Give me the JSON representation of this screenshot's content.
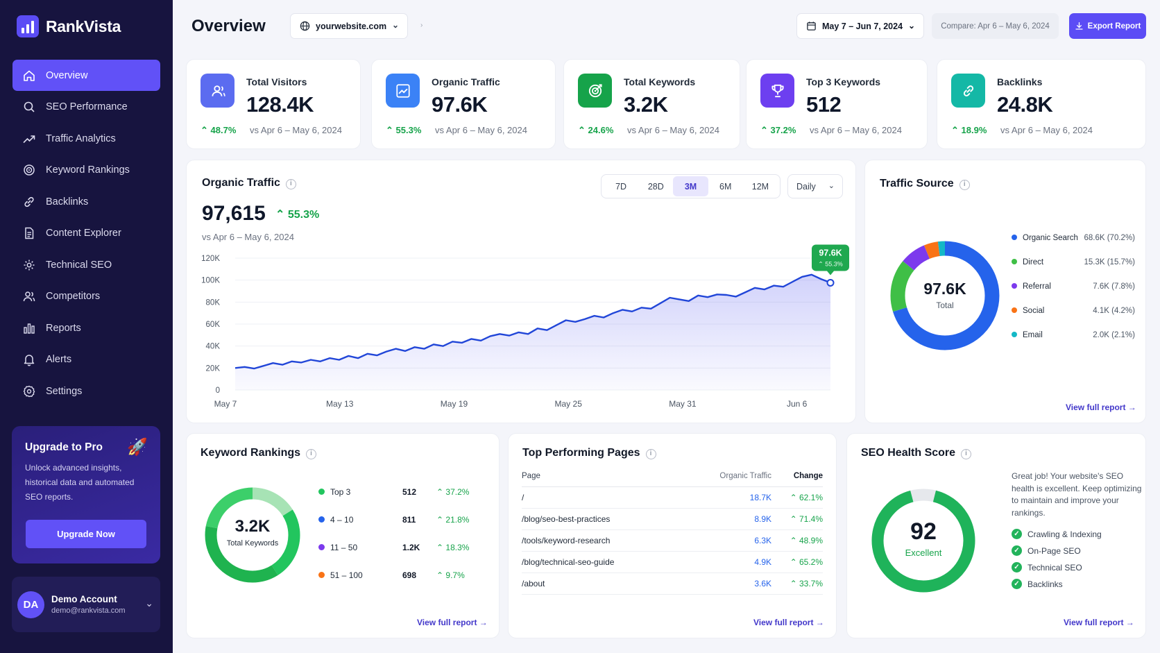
{
  "brand": {
    "name": "RankVista"
  },
  "sidebar": {
    "items": [
      {
        "label": "Overview",
        "icon": "home-icon",
        "active": true
      },
      {
        "label": "SEO Performance",
        "icon": "search-icon"
      },
      {
        "label": "Traffic Analytics",
        "icon": "trending-icon"
      },
      {
        "label": "Keyword Rankings",
        "icon": "target-icon"
      },
      {
        "label": "Backlinks",
        "icon": "link-icon"
      },
      {
        "label": "Content Explorer",
        "icon": "document-icon"
      },
      {
        "label": "Technical SEO",
        "icon": "gear-icon"
      },
      {
        "label": "Competitors",
        "icon": "users-icon"
      },
      {
        "label": "Reports",
        "icon": "bar-chart-icon"
      },
      {
        "label": "Alerts",
        "icon": "bell-icon"
      },
      {
        "label": "Settings",
        "icon": "settings-icon"
      }
    ],
    "upgrade": {
      "title": "Upgrade to Pro",
      "text": "Unlock advanced insights, historical data and automated SEO reports.",
      "button": "Upgrade Now"
    },
    "account": {
      "initials": "DA",
      "name": "Demo Account",
      "email": "demo@rankvista.com"
    }
  },
  "header": {
    "title": "Overview",
    "site": "yourwebsite.com",
    "date_range": "May 7 – Jun 7, 2024",
    "compare": "Compare: Apr 6 – May 6, 2024",
    "export": "Export Report"
  },
  "kpis": [
    {
      "label": "Total Visitors",
      "value": "128.4K",
      "change": "48.7%",
      "compare": "vs Apr 6 – May 6, 2024",
      "color": "#5b6cf0",
      "icon": "users-icon"
    },
    {
      "label": "Organic Traffic",
      "value": "97.6K",
      "change": "55.3%",
      "compare": "vs Apr 6 – May 6, 2024",
      "color": "#3b82f6",
      "icon": "trending-up-icon"
    },
    {
      "label": "Total Keywords",
      "value": "3.2K",
      "change": "24.6%",
      "compare": "vs Apr 6 – May 6, 2024",
      "color": "#16a34a",
      "icon": "target-icon"
    },
    {
      "label": "Top 3 Keywords",
      "value": "512",
      "change": "37.2%",
      "compare": "vs Apr 6 – May 6, 2024",
      "color": "#6d3ff0",
      "icon": "trophy-icon"
    },
    {
      "label": "Backlinks",
      "value": "24.8K",
      "change": "18.9%",
      "compare": "vs Apr 6 – May 6, 2024",
      "color": "#14b8a6",
      "icon": "link-icon"
    }
  ],
  "organic": {
    "title": "Organic Traffic",
    "ranges": [
      "7D",
      "28D",
      "3M",
      "6M",
      "12M"
    ],
    "active_range": "3M",
    "granularity": "Daily",
    "value": "97,615",
    "change": "55.3%",
    "compare": "vs Apr 6 – May 6, 2024",
    "tooltip": {
      "value": "97.6K",
      "change": "55.3%"
    }
  },
  "chart_data": {
    "type": "area",
    "x_ticks": [
      "May 7",
      "May 13",
      "May 19",
      "May 25",
      "May 31",
      "Jun 6"
    ],
    "y_ticks": [
      "0",
      "20K",
      "40K",
      "60K",
      "80K",
      "100K",
      "120K"
    ],
    "ylim": [
      0,
      120000
    ],
    "series": [
      {
        "values": [
          20000,
          21000,
          19500,
          22000,
          24500,
          23000,
          26000,
          25000,
          27500,
          26000,
          29000,
          27500,
          31000,
          29000,
          33000,
          31500,
          35000,
          37500,
          35500,
          39000,
          37500,
          41500,
          40000,
          44000,
          43000,
          46500,
          45000,
          49000,
          51000,
          49500,
          52500,
          51000,
          56000,
          54500,
          59000,
          63500,
          62000,
          64500,
          67500,
          66000,
          70000,
          73000,
          71500,
          75000,
          74000,
          79000,
          84000,
          82500,
          81000,
          86000,
          84500,
          87000,
          86500,
          85000,
          89000,
          93000,
          91500,
          95000,
          94000,
          98500,
          103000,
          105000,
          101000,
          97615
        ]
      }
    ]
  },
  "traffic_source": {
    "title": "Traffic Source",
    "center_value": "97.6K",
    "center_label": "Total",
    "items": [
      {
        "label": "Organic Search",
        "value": "68.6K (70.2%)",
        "pct": 70.2,
        "color": "#2563eb"
      },
      {
        "label": "Direct",
        "value": "15.3K (15.7%)",
        "pct": 15.7,
        "color": "#3fbf46"
      },
      {
        "label": "Referral",
        "value": "7.6K (7.8%)",
        "pct": 7.8,
        "color": "#7c3aed"
      },
      {
        "label": "Social",
        "value": "4.1K (4.2%)",
        "pct": 4.2,
        "color": "#f97316"
      },
      {
        "label": "Email",
        "value": "2.0K (2.1%)",
        "pct": 2.1,
        "color": "#14b8c6"
      }
    ],
    "link": "View full report"
  },
  "keyword_rankings": {
    "title": "Keyword Rankings",
    "center_value": "3.2K",
    "center_label": "Total Keywords",
    "rows": [
      {
        "label": "Top 3",
        "count": "512",
        "change": "37.2%",
        "color": "#22c55e"
      },
      {
        "label": "4 – 10",
        "count": "811",
        "change": "21.8%",
        "color": "#2563eb"
      },
      {
        "label": "11 – 50",
        "count": "1.2K",
        "change": "18.3%",
        "color": "#7c3aed"
      },
      {
        "label": "51 – 100",
        "count": "698",
        "change": "9.7%",
        "color": "#f97316"
      }
    ],
    "link": "View full report"
  },
  "top_pages": {
    "title": "Top Performing Pages",
    "headers": [
      "Page",
      "Organic Traffic",
      "Change"
    ],
    "rows": [
      {
        "page": "/",
        "traffic": "18.7K",
        "change": "62.1%"
      },
      {
        "page": "/blog/seo-best-practices",
        "traffic": "8.9K",
        "change": "71.4%"
      },
      {
        "page": "/tools/keyword-research",
        "traffic": "6.3K",
        "change": "48.9%"
      },
      {
        "page": "/blog/technical-seo-guide",
        "traffic": "4.9K",
        "change": "65.2%"
      },
      {
        "page": "/about",
        "traffic": "3.6K",
        "change": "33.7%"
      }
    ],
    "link": "View full report"
  },
  "seo_health": {
    "title": "SEO Health Score",
    "score": "92",
    "score_value": 92,
    "label": "Excellent",
    "text": "Great job! Your website's SEO health is excellent. Keep optimizing to maintain and improve your rankings.",
    "checks": [
      "Crawling & Indexing",
      "On-Page SEO",
      "Technical SEO",
      "Backlinks"
    ],
    "link": "View full report"
  },
  "colors": {
    "accent": "#5b4cf5",
    "sidebar": "#17143f",
    "positive": "#16a34a"
  }
}
